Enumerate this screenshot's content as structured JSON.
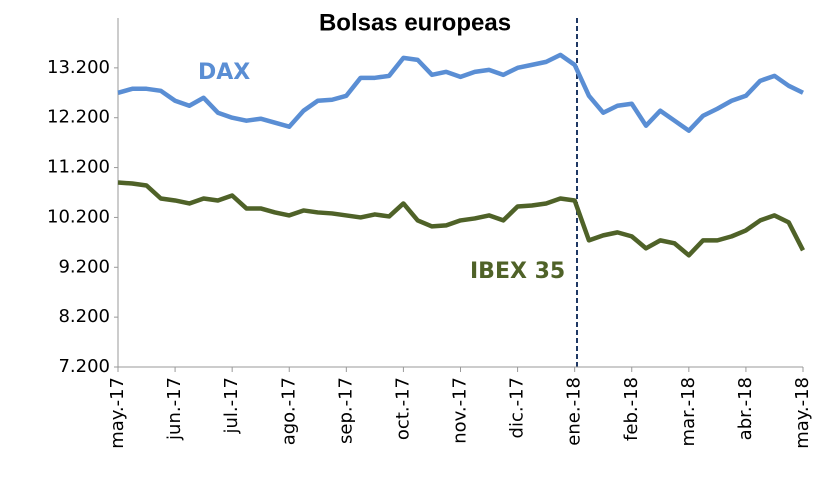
{
  "chart_data": {
    "type": "line",
    "title": "Bolsas europeas",
    "categories": [
      "may.-17",
      null,
      null,
      null,
      "jun.-17",
      null,
      null,
      null,
      "jul.-17",
      null,
      null,
      null,
      "ago.-17",
      null,
      null,
      null,
      "sep.-17",
      null,
      null,
      null,
      "oct.-17",
      null,
      null,
      null,
      "nov.-17",
      null,
      null,
      null,
      "dic.-17",
      null,
      null,
      null,
      "ene.-18",
      null,
      null,
      null,
      "feb.-18",
      null,
      null,
      null,
      "mar.-18",
      null,
      null,
      null,
      "abr.-18",
      null,
      null,
      null,
      "may.-18"
    ],
    "series": [
      {
        "name": "DAX",
        "color": "#5a8ed4",
        "values": [
          12700,
          12780,
          12780,
          12740,
          12540,
          12440,
          12600,
          12300,
          12200,
          12140,
          12180,
          12100,
          12020,
          12340,
          12540,
          12560,
          12640,
          13000,
          13000,
          13040,
          13400,
          13360,
          13060,
          13120,
          13020,
          13120,
          13160,
          13060,
          13200,
          13260,
          13320,
          13460,
          13260,
          12640,
          12300,
          12440,
          12480,
          12040,
          12340,
          12140,
          11940,
          12240,
          12380,
          12540,
          12640,
          12940,
          13040,
          12840,
          12700
        ]
      },
      {
        "name": "IBEX 35",
        "color": "#4f6228",
        "values": [
          10900,
          10880,
          10840,
          10580,
          10540,
          10480,
          10580,
          10540,
          10640,
          10380,
          10380,
          10300,
          10240,
          10340,
          10300,
          10280,
          10240,
          10200,
          10260,
          10220,
          10480,
          10140,
          10020,
          10040,
          10140,
          10180,
          10240,
          10140,
          10420,
          10440,
          10480,
          10580,
          10540,
          9740,
          9840,
          9900,
          9820,
          9580,
          9740,
          9680,
          9440,
          9740,
          9740,
          9820,
          9940,
          10140,
          10240,
          10100,
          9540
        ]
      }
    ],
    "ylim": [
      7200,
      14200
    ],
    "yticks": [
      {
        "value": 7200,
        "label": "7.200"
      },
      {
        "value": 8200,
        "label": "8.200"
      },
      {
        "value": 9200,
        "label": "9.200"
      },
      {
        "value": 10200,
        "label": "10.200"
      },
      {
        "value": 11200,
        "label": "11.200"
      },
      {
        "value": 12200,
        "label": "12.200"
      },
      {
        "value": 13200,
        "label": "13.200"
      }
    ],
    "grid": false
  }
}
